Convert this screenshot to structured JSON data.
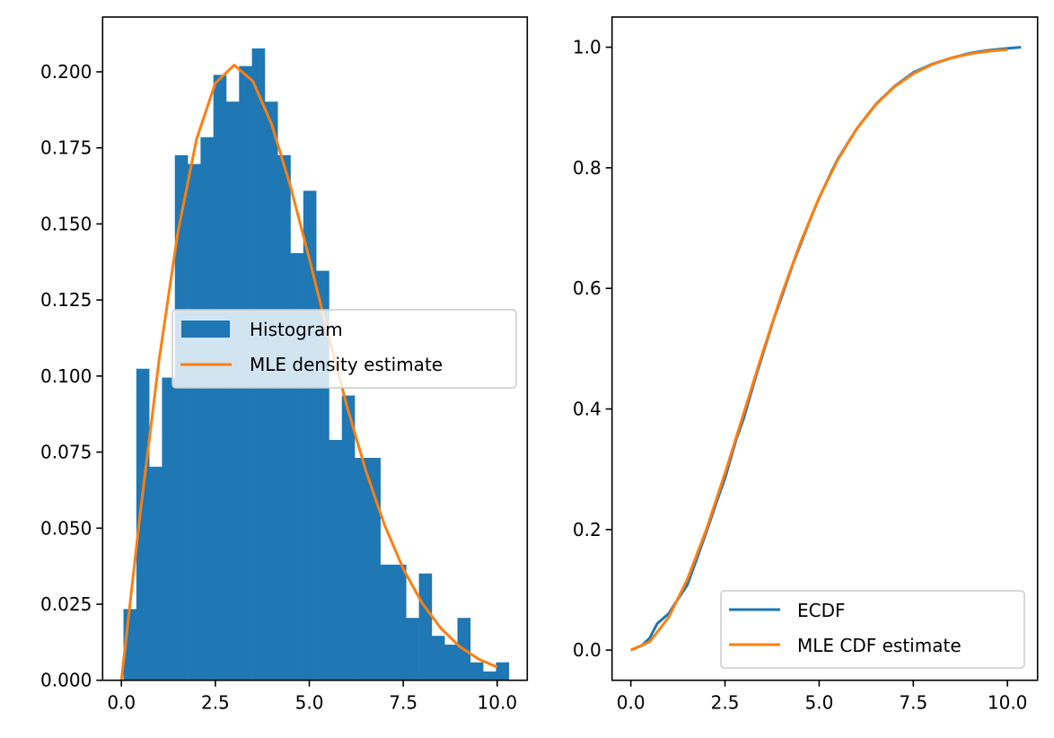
{
  "figure": {
    "colors": {
      "histogram": "#1f77b4",
      "ecdf": "#1f77b4",
      "mle": "#ff7f0e",
      "axis": "#000000",
      "legend_border": "#cccccc"
    }
  },
  "chart_data": [
    {
      "type": "bar",
      "subtype": "histogram-with-density",
      "title": "",
      "xlabel": "",
      "ylabel": "",
      "xlim": [
        -0.5,
        10.8
      ],
      "ylim": [
        0.0,
        0.218
      ],
      "grid": false,
      "xticks": [
        0.0,
        2.5,
        5.0,
        7.5,
        10.0
      ],
      "xtick_labels": [
        "0.0",
        "2.5",
        "5.0",
        "7.5",
        "10.0"
      ],
      "yticks": [
        0.0,
        0.025,
        0.05,
        0.075,
        0.1,
        0.125,
        0.15,
        0.175,
        0.2
      ],
      "ytick_labels": [
        "0.000",
        "0.025",
        "0.050",
        "0.075",
        "0.100",
        "0.125",
        "0.150",
        "0.175",
        "0.200"
      ],
      "legend": {
        "placement": "center-right",
        "entries": [
          {
            "label": "Histogram",
            "kind": "patch",
            "color": "#1f77b4"
          },
          {
            "label": "MLE density estimate",
            "kind": "line",
            "color": "#ff7f0e"
          }
        ]
      },
      "histogram": {
        "name": "Histogram",
        "bin_start": 0.055,
        "bin_width": 0.3418,
        "values": [
          0.0234,
          0.1024,
          0.0702,
          0.0995,
          0.1726,
          0.1697,
          0.1785,
          0.199,
          0.1902,
          0.2019,
          0.2077,
          0.1902,
          0.1726,
          0.1404,
          0.1609,
          0.1346,
          0.079,
          0.0936,
          0.0731,
          0.0731,
          0.038,
          0.038,
          0.0205,
          0.0351,
          0.0146,
          0.0117,
          0.0205,
          0.0059,
          0.0029,
          0.0059
        ]
      },
      "density": {
        "name": "MLE density estimate",
        "x": [
          0,
          0.5,
          1,
          1.5,
          2,
          2.5,
          3,
          3.5,
          4,
          4.5,
          5,
          5.5,
          6,
          6.5,
          7,
          7.5,
          8,
          8.5,
          9,
          9.5,
          10
        ],
        "y": [
          0,
          0.0548,
          0.1051,
          0.1471,
          0.1779,
          0.1963,
          0.2022,
          0.1969,
          0.1827,
          0.1623,
          0.1386,
          0.1138,
          0.0902,
          0.069,
          0.0511,
          0.0366,
          0.0254,
          0.0171,
          0.0111,
          0.007,
          0.0043
        ]
      }
    },
    {
      "type": "line",
      "title": "",
      "xlabel": "",
      "ylabel": "",
      "xlim": [
        -0.5,
        10.8
      ],
      "ylim": [
        -0.05,
        1.05
      ],
      "grid": false,
      "xticks": [
        0.0,
        2.5,
        5.0,
        7.5,
        10.0
      ],
      "xtick_labels": [
        "0.0",
        "2.5",
        "5.0",
        "7.5",
        "10.0"
      ],
      "yticks": [
        0.0,
        0.2,
        0.4,
        0.6,
        0.8,
        1.0
      ],
      "ytick_labels": [
        "0.0",
        "0.2",
        "0.4",
        "0.6",
        "0.8",
        "1.0"
      ],
      "legend": {
        "placement": "lower-right",
        "entries": [
          {
            "label": "ECDF",
            "kind": "line",
            "color": "#1f77b4"
          },
          {
            "label": "MLE CDF estimate",
            "kind": "line",
            "color": "#ff7f0e"
          }
        ]
      },
      "series": [
        {
          "name": "ECDF",
          "x": [
            0,
            0.3,
            0.5,
            0.7,
            0.9,
            1.0,
            1.2,
            1.5,
            1.8,
            2.0,
            2.3,
            2.5,
            2.8,
            3.0,
            3.3,
            3.5,
            3.8,
            4.0,
            4.3,
            4.5,
            4.8,
            5.0,
            5.3,
            5.5,
            5.8,
            6.0,
            6.5,
            7.0,
            7.5,
            8.0,
            8.5,
            9.0,
            9.5,
            10.0,
            10.36
          ],
          "y": [
            0.0,
            0.008,
            0.02,
            0.044,
            0.055,
            0.06,
            0.08,
            0.108,
            0.16,
            0.195,
            0.25,
            0.285,
            0.35,
            0.385,
            0.45,
            0.49,
            0.55,
            0.585,
            0.64,
            0.672,
            0.72,
            0.75,
            0.79,
            0.815,
            0.845,
            0.865,
            0.905,
            0.935,
            0.958,
            0.972,
            0.982,
            0.99,
            0.995,
            0.998,
            1.0
          ]
        },
        {
          "name": "MLE CDF estimate",
          "x": [
            0,
            0.5,
            1,
            1.5,
            2,
            2.5,
            3,
            3.5,
            4,
            4.5,
            5,
            5.5,
            6,
            6.5,
            7,
            7.5,
            8,
            8.5,
            9,
            9.5,
            10
          ],
          "y": [
            0,
            0.0138,
            0.054,
            0.1175,
            0.1993,
            0.2933,
            0.3935,
            0.4937,
            0.5889,
            0.6753,
            0.7506,
            0.8138,
            0.8647,
            0.9044,
            0.9343,
            0.9561,
            0.9714,
            0.9819,
            0.9889,
            0.9934,
            0.9961
          ]
        }
      ]
    }
  ]
}
